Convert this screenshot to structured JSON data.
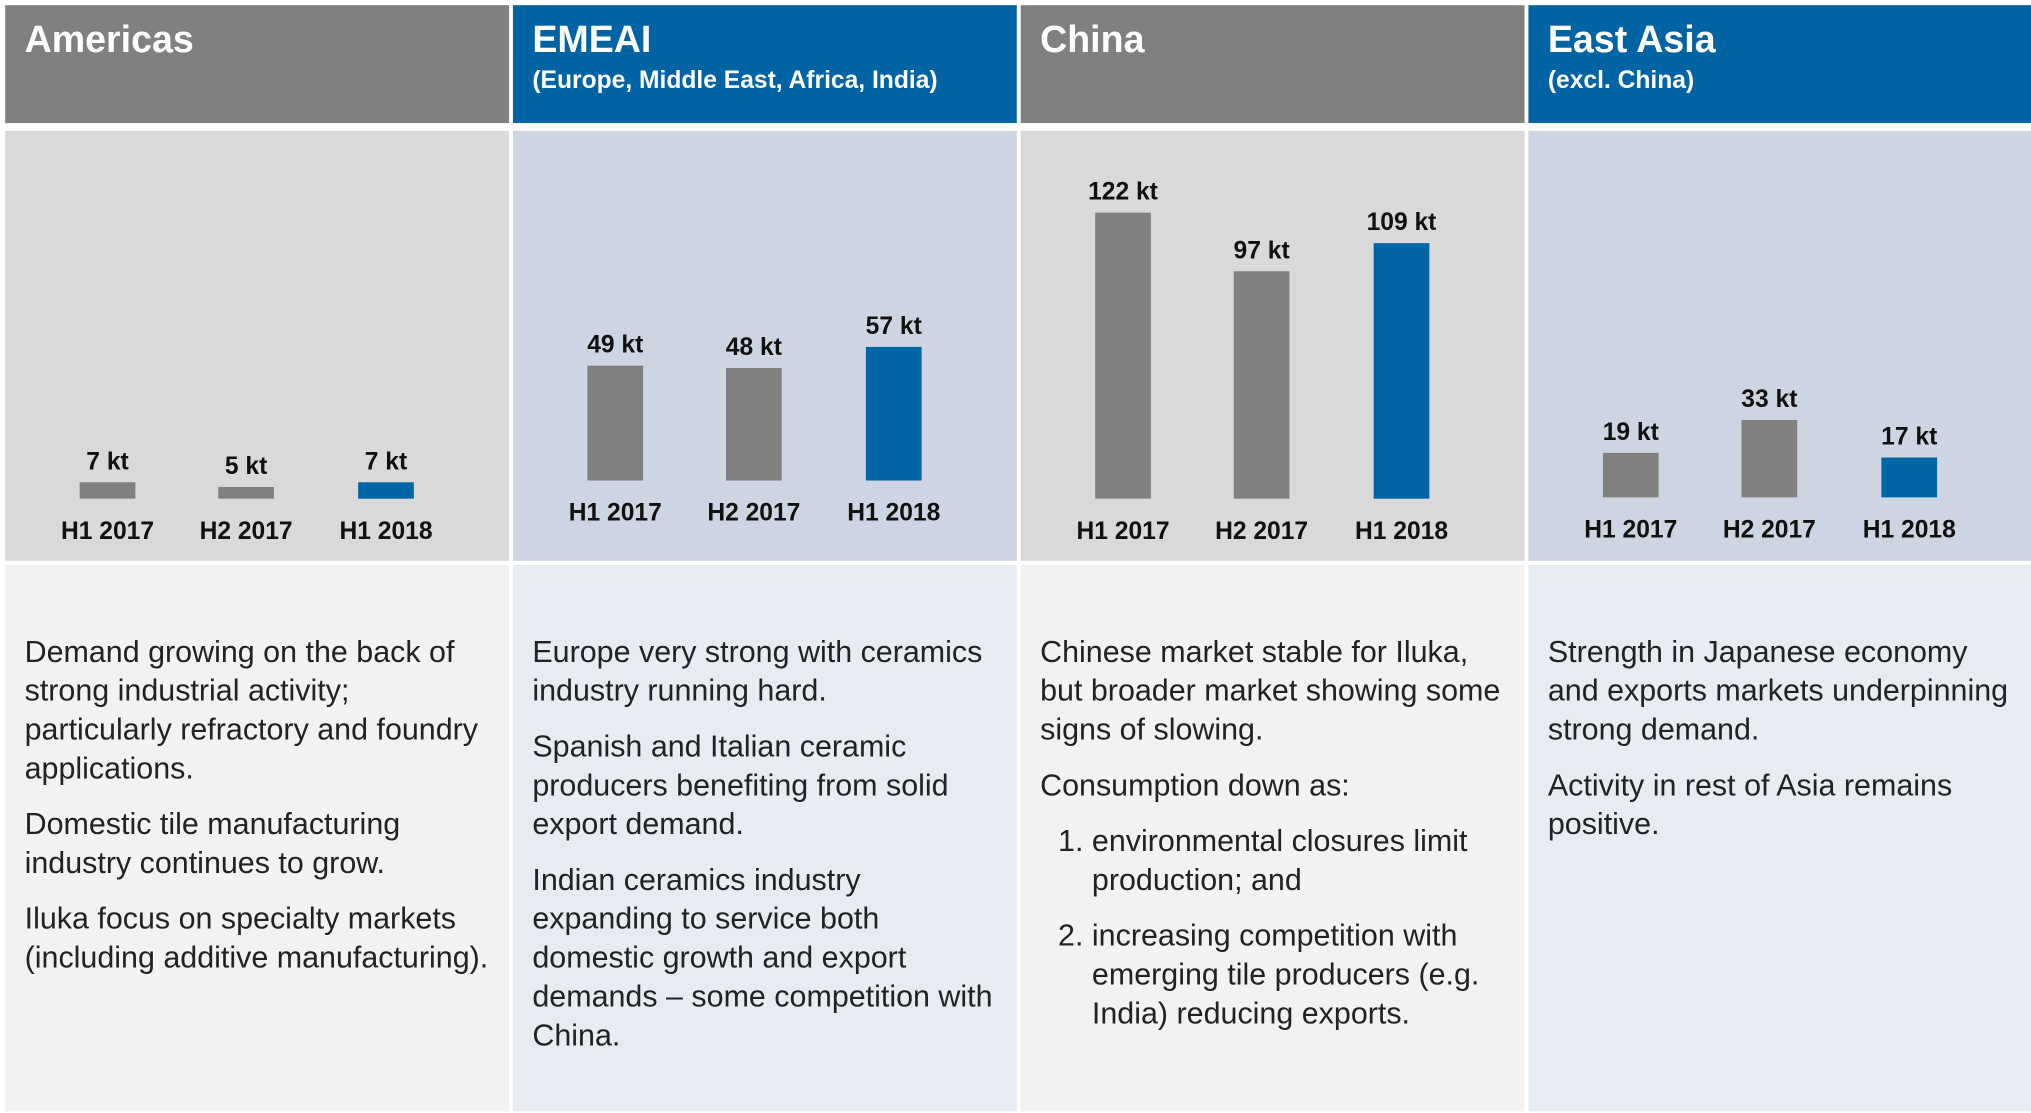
{
  "chart_data": [
    {
      "type": "bar",
      "title": "Americas",
      "categories": [
        "H1 2017",
        "H2 2017",
        "H1 2018"
      ],
      "values": [
        7,
        5,
        7
      ],
      "value_labels": [
        "7 kt",
        "5 kt",
        "7 kt"
      ],
      "colors": [
        "#808080",
        "#808080",
        "#0066a6"
      ]
    },
    {
      "type": "bar",
      "title": "EMEAI",
      "subtitle": "(Europe, Middle East, Africa, India)",
      "categories": [
        "H1 2017",
        "H2 2017",
        "H1 2018"
      ],
      "values": [
        49,
        48,
        57
      ],
      "value_labels": [
        "49 kt",
        "48 kt",
        "57 kt"
      ],
      "colors": [
        "#808080",
        "#808080",
        "#0066a6"
      ]
    },
    {
      "type": "bar",
      "title": "China",
      "categories": [
        "H1 2017",
        "H2 2017",
        "H1 2018"
      ],
      "values": [
        122,
        97,
        109
      ],
      "value_labels": [
        "122 kt",
        "97 kt",
        "109 kt"
      ],
      "colors": [
        "#808080",
        "#808080",
        "#0066a6"
      ]
    },
    {
      "type": "bar",
      "title": "East Asia",
      "subtitle": "(excl. China)",
      "categories": [
        "H1 2017",
        "H2 2017",
        "H1 2018"
      ],
      "values": [
        19,
        33,
        17
      ],
      "value_labels": [
        "19 kt",
        "33 kt",
        "17 kt"
      ],
      "colors": [
        "#808080",
        "#808080",
        "#0066a6"
      ]
    }
  ],
  "notes": [
    {
      "paragraphs": [
        "Demand growing on the back of strong industrial activity; particularly refractory and foundry applications.",
        "Domestic tile manufacturing industry continues to grow.",
        "Iluka focus on specialty markets (including additive manufacturing)."
      ]
    },
    {
      "paragraphs": [
        "Europe very strong with ceramics industry running hard.",
        "Spanish and Italian ceramic producers benefiting from solid export demand.",
        "Indian ceramics industry expanding to service both domestic growth and export demands – some competition with China."
      ]
    },
    {
      "paragraphs": [
        "Chinese market stable for Iluka, but broader market showing some signs of slowing.",
        "Consumption down as:"
      ],
      "list": [
        "environmental closures limit production; and",
        "increasing competition with emerging tile producers (e.g. India) reducing exports."
      ]
    },
    {
      "paragraphs": [
        "Strength in Japanese economy and exports markets underpinning strong demand.",
        "Activity in rest of Asia remains positive."
      ]
    }
  ]
}
